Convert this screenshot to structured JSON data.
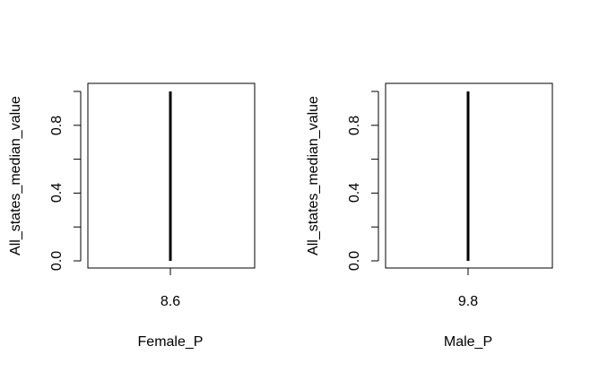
{
  "chart_data": [
    {
      "type": "line",
      "title": "",
      "xlabel": "Female_P",
      "ylabel": "All_states_median_value",
      "x_tick_labels": [
        "8.6"
      ],
      "y_tick_labels": [
        "0.0",
        "0.4",
        "0.8"
      ],
      "ylim": [
        0,
        1
      ],
      "y_ticks": [
        0,
        0.2,
        0.4,
        0.6,
        0.8,
        1.0
      ],
      "series": [
        {
          "x": [
            8.6,
            8.6
          ],
          "y": [
            0,
            1
          ]
        }
      ]
    },
    {
      "type": "line",
      "title": "",
      "xlabel": "Male_P",
      "ylabel": "All_states_median_value",
      "x_tick_labels": [
        "9.8"
      ],
      "y_tick_labels": [
        "0.0",
        "0.4",
        "0.8"
      ],
      "ylim": [
        0,
        1
      ],
      "y_ticks": [
        0,
        0.2,
        0.4,
        0.6,
        0.8,
        1.0
      ],
      "series": [
        {
          "x": [
            9.8,
            9.8
          ],
          "y": [
            0,
            1
          ]
        }
      ]
    }
  ]
}
